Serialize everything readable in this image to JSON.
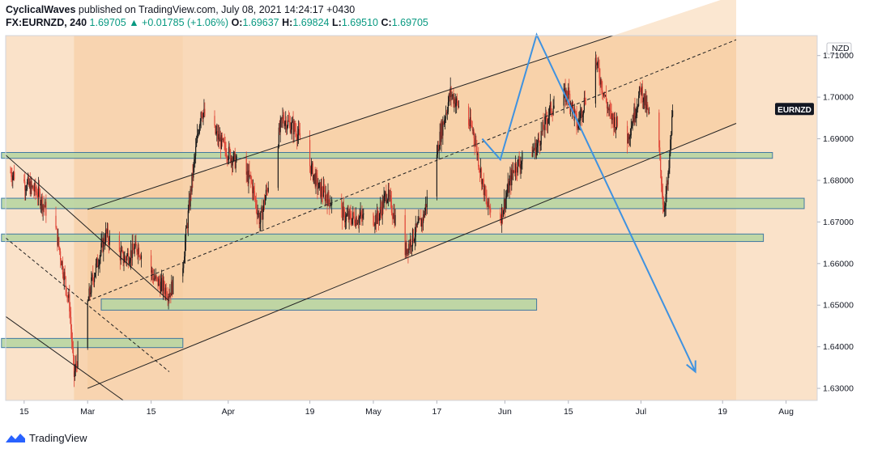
{
  "header": {
    "author": "CyclicalWaves",
    "published": "published on TradingView.com, July 08, 2021 14:24:17 +0430",
    "symbol": "FX:EURNZD, 240",
    "last": "1.69705",
    "change_arrow": "▲",
    "change": "+0.01785 (+1.06%)",
    "o_label": "O:",
    "o_value": "1.69637",
    "h_label": "H:",
    "h_value": "1.69824",
    "l_label": "L:",
    "l_value": "1.69510",
    "c_label": "C:",
    "c_value": "1.69705"
  },
  "footer": {
    "brand": "TradingView",
    "logo_icon": "tradingview-logo-icon"
  },
  "colors": {
    "panel_bg": "#fae2c9",
    "channel_fill": "#f6c99a",
    "zone_fill": "#b9d6a3",
    "zone_border": "#2e6e9e",
    "arrow": "#3f92e0",
    "candle_up": "#1b1b1b",
    "candle_down": "#e0483a",
    "label_bg": "#131722"
  },
  "chart_data": {
    "type": "candlestick",
    "currency_label": "NZD",
    "last_price_label": "EURNZD",
    "last_price": 1.69705,
    "y_range": [
      1.6271,
      1.7148
    ],
    "y_ticks": [
      {
        "value": 1.71,
        "label": "1.71000"
      },
      {
        "value": 1.7,
        "label": "1.70000"
      },
      {
        "value": 1.69,
        "label": "1.69000"
      },
      {
        "value": 1.68,
        "label": "1.68000"
      },
      {
        "value": 1.67,
        "label": "1.67000"
      },
      {
        "value": 1.66,
        "label": "1.66000"
      },
      {
        "value": 1.65,
        "label": "1.65000"
      },
      {
        "value": 1.64,
        "label": "1.64000"
      },
      {
        "value": 1.63,
        "label": "1.63000"
      }
    ],
    "x_ticks": [
      {
        "date": "2021-02-15",
        "label": "15"
      },
      {
        "date": "2021-03-01",
        "label": "Mar"
      },
      {
        "date": "2021-03-15",
        "label": "15"
      },
      {
        "date": "2021-04-01",
        "label": "Apr"
      },
      {
        "date": "2021-04-19",
        "label": "19"
      },
      {
        "date": "2021-05-03",
        "label": "May"
      },
      {
        "date": "2021-05-17",
        "label": "17"
      },
      {
        "date": "2021-06-01",
        "label": "Jun"
      },
      {
        "date": "2021-06-15",
        "label": "15"
      },
      {
        "date": "2021-07-01",
        "label": "Jul"
      },
      {
        "date": "2021-07-19",
        "label": "19"
      },
      {
        "date": "2021-08-02",
        "label": "Aug"
      }
    ],
    "price_path": [
      [
        "2021-02-12",
        1.682
      ],
      [
        "2021-02-18",
        1.677
      ],
      [
        "2021-02-22",
        1.668
      ],
      [
        "2021-02-25",
        1.65
      ],
      [
        "2021-02-26",
        1.633
      ],
      [
        "2021-03-02",
        1.656
      ],
      [
        "2021-03-05",
        1.667
      ],
      [
        "2021-03-09",
        1.661
      ],
      [
        "2021-03-12",
        1.664
      ],
      [
        "2021-03-16",
        1.656
      ],
      [
        "2021-03-19",
        1.653
      ],
      [
        "2021-03-22",
        1.66
      ],
      [
        "2021-03-24",
        1.68
      ],
      [
        "2021-03-26",
        1.697
      ],
      [
        "2021-03-31",
        1.688
      ],
      [
        "2021-04-06",
        1.68
      ],
      [
        "2021-04-08",
        1.67
      ],
      [
        "2021-04-13",
        1.695
      ],
      [
        "2021-04-16",
        1.692
      ],
      [
        "2021-04-21",
        1.678
      ],
      [
        "2021-04-27",
        1.671
      ],
      [
        "2021-05-04",
        1.671
      ],
      [
        "2021-05-06",
        1.677
      ],
      [
        "2021-05-10",
        1.663
      ],
      [
        "2021-05-14",
        1.671
      ],
      [
        "2021-05-18",
        1.692
      ],
      [
        "2021-05-20",
        1.701
      ],
      [
        "2021-05-25",
        1.692
      ],
      [
        "2021-05-28",
        1.674
      ],
      [
        "2021-05-31",
        1.671
      ],
      [
        "2021-06-03",
        1.683
      ],
      [
        "2021-06-08",
        1.688
      ],
      [
        "2021-06-11",
        1.697
      ],
      [
        "2021-06-15",
        1.701
      ],
      [
        "2021-06-17",
        1.693
      ],
      [
        "2021-06-21",
        1.709
      ],
      [
        "2021-06-24",
        1.696
      ],
      [
        "2021-06-28",
        1.69
      ],
      [
        "2021-07-01",
        1.702
      ],
      [
        "2021-07-05",
        1.687
      ],
      [
        "2021-07-06",
        1.673
      ],
      [
        "2021-07-07",
        1.68
      ],
      [
        "2021-07-08",
        1.69705
      ]
    ],
    "channel_upper": [
      [
        "2021-03-01",
        1.673
      ],
      [
        "2021-06-29",
        1.7163
      ]
    ],
    "channel_mid": [
      [
        "2021-03-01",
        1.651
      ],
      [
        "2021-07-22",
        1.7138
      ]
    ],
    "channel_lower": [
      [
        "2021-03-01",
        1.63
      ],
      [
        "2021-07-22",
        1.6937
      ]
    ],
    "descending_line_1": [
      [
        "2021-02-10",
        1.687
      ],
      [
        "2021-03-19",
        1.651
      ]
    ],
    "descending_line_2": [
      [
        "2021-02-10",
        1.667
      ],
      [
        "2021-03-19",
        1.634
      ]
    ],
    "descending_line_3": [
      [
        "2021-02-10",
        1.648
      ],
      [
        "2021-03-09",
        1.627
      ]
    ],
    "zones": [
      {
        "start": "2021-02-10",
        "end": "2021-07-30",
        "top": 1.6867,
        "bottom": 1.6853
      },
      {
        "start": "2021-02-10",
        "end": "2021-08-06",
        "top": 1.6757,
        "bottom": 1.6732
      },
      {
        "start": "2021-02-10",
        "end": "2021-07-28",
        "top": 1.6671,
        "bottom": 1.6653
      },
      {
        "start": "2021-03-04",
        "end": "2021-06-08",
        "top": 1.6515,
        "bottom": 1.6488
      },
      {
        "start": "2021-02-10",
        "end": "2021-03-22",
        "top": 1.642,
        "bottom": 1.6398
      }
    ],
    "arrow_path": [
      [
        "2021-05-27",
        1.69
      ],
      [
        "2021-05-31",
        1.685
      ],
      [
        "2021-06-08",
        1.715
      ],
      [
        "2021-07-13",
        1.634
      ]
    ],
    "highlight_left": {
      "start": "2021-02-26",
      "end": "2021-03-22"
    },
    "highlight_right": {
      "start": "2021-03-22",
      "end": "2021-07-22"
    }
  }
}
